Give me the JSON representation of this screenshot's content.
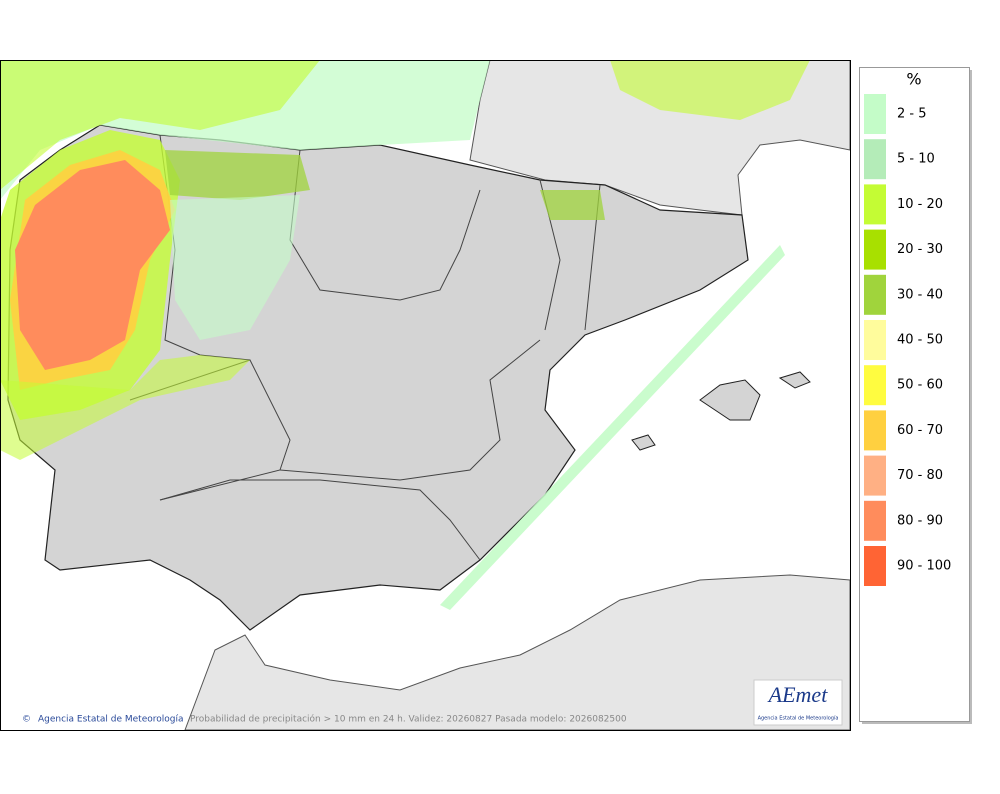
{
  "map": {
    "credit": "Agencia Estatal de Meteorología",
    "caption": "Probabilidad de precipitación > 10 mm en 24 h. Validez: 20260827 Pasada modelo: 2026082500"
  },
  "logo": {
    "name": "AEmet",
    "subtitle": "Agencia Estatal de Meteorología"
  },
  "legend": {
    "title": "%",
    "items": [
      {
        "label": "2 - 5",
        "color": "#c4fcc8"
      },
      {
        "label": "5 - 10",
        "color": "#b4ecb8"
      },
      {
        "label": "10 - 20",
        "color": "#c4fc34"
      },
      {
        "label": "20 - 30",
        "color": "#a8e000"
      },
      {
        "label": "30 - 40",
        "color": "#a0d43c"
      },
      {
        "label": "40 - 50",
        "color": "#fffc9c"
      },
      {
        "label": "50 - 60",
        "color": "#fffc40"
      },
      {
        "label": "60 - 70",
        "color": "#ffd040"
      },
      {
        "label": "70 - 80",
        "color": "#ffb084"
      },
      {
        "label": "80 - 90",
        "color": "#ff8c5c"
      },
      {
        "label": "90 - 100",
        "color": "#ff6434"
      }
    ]
  }
}
